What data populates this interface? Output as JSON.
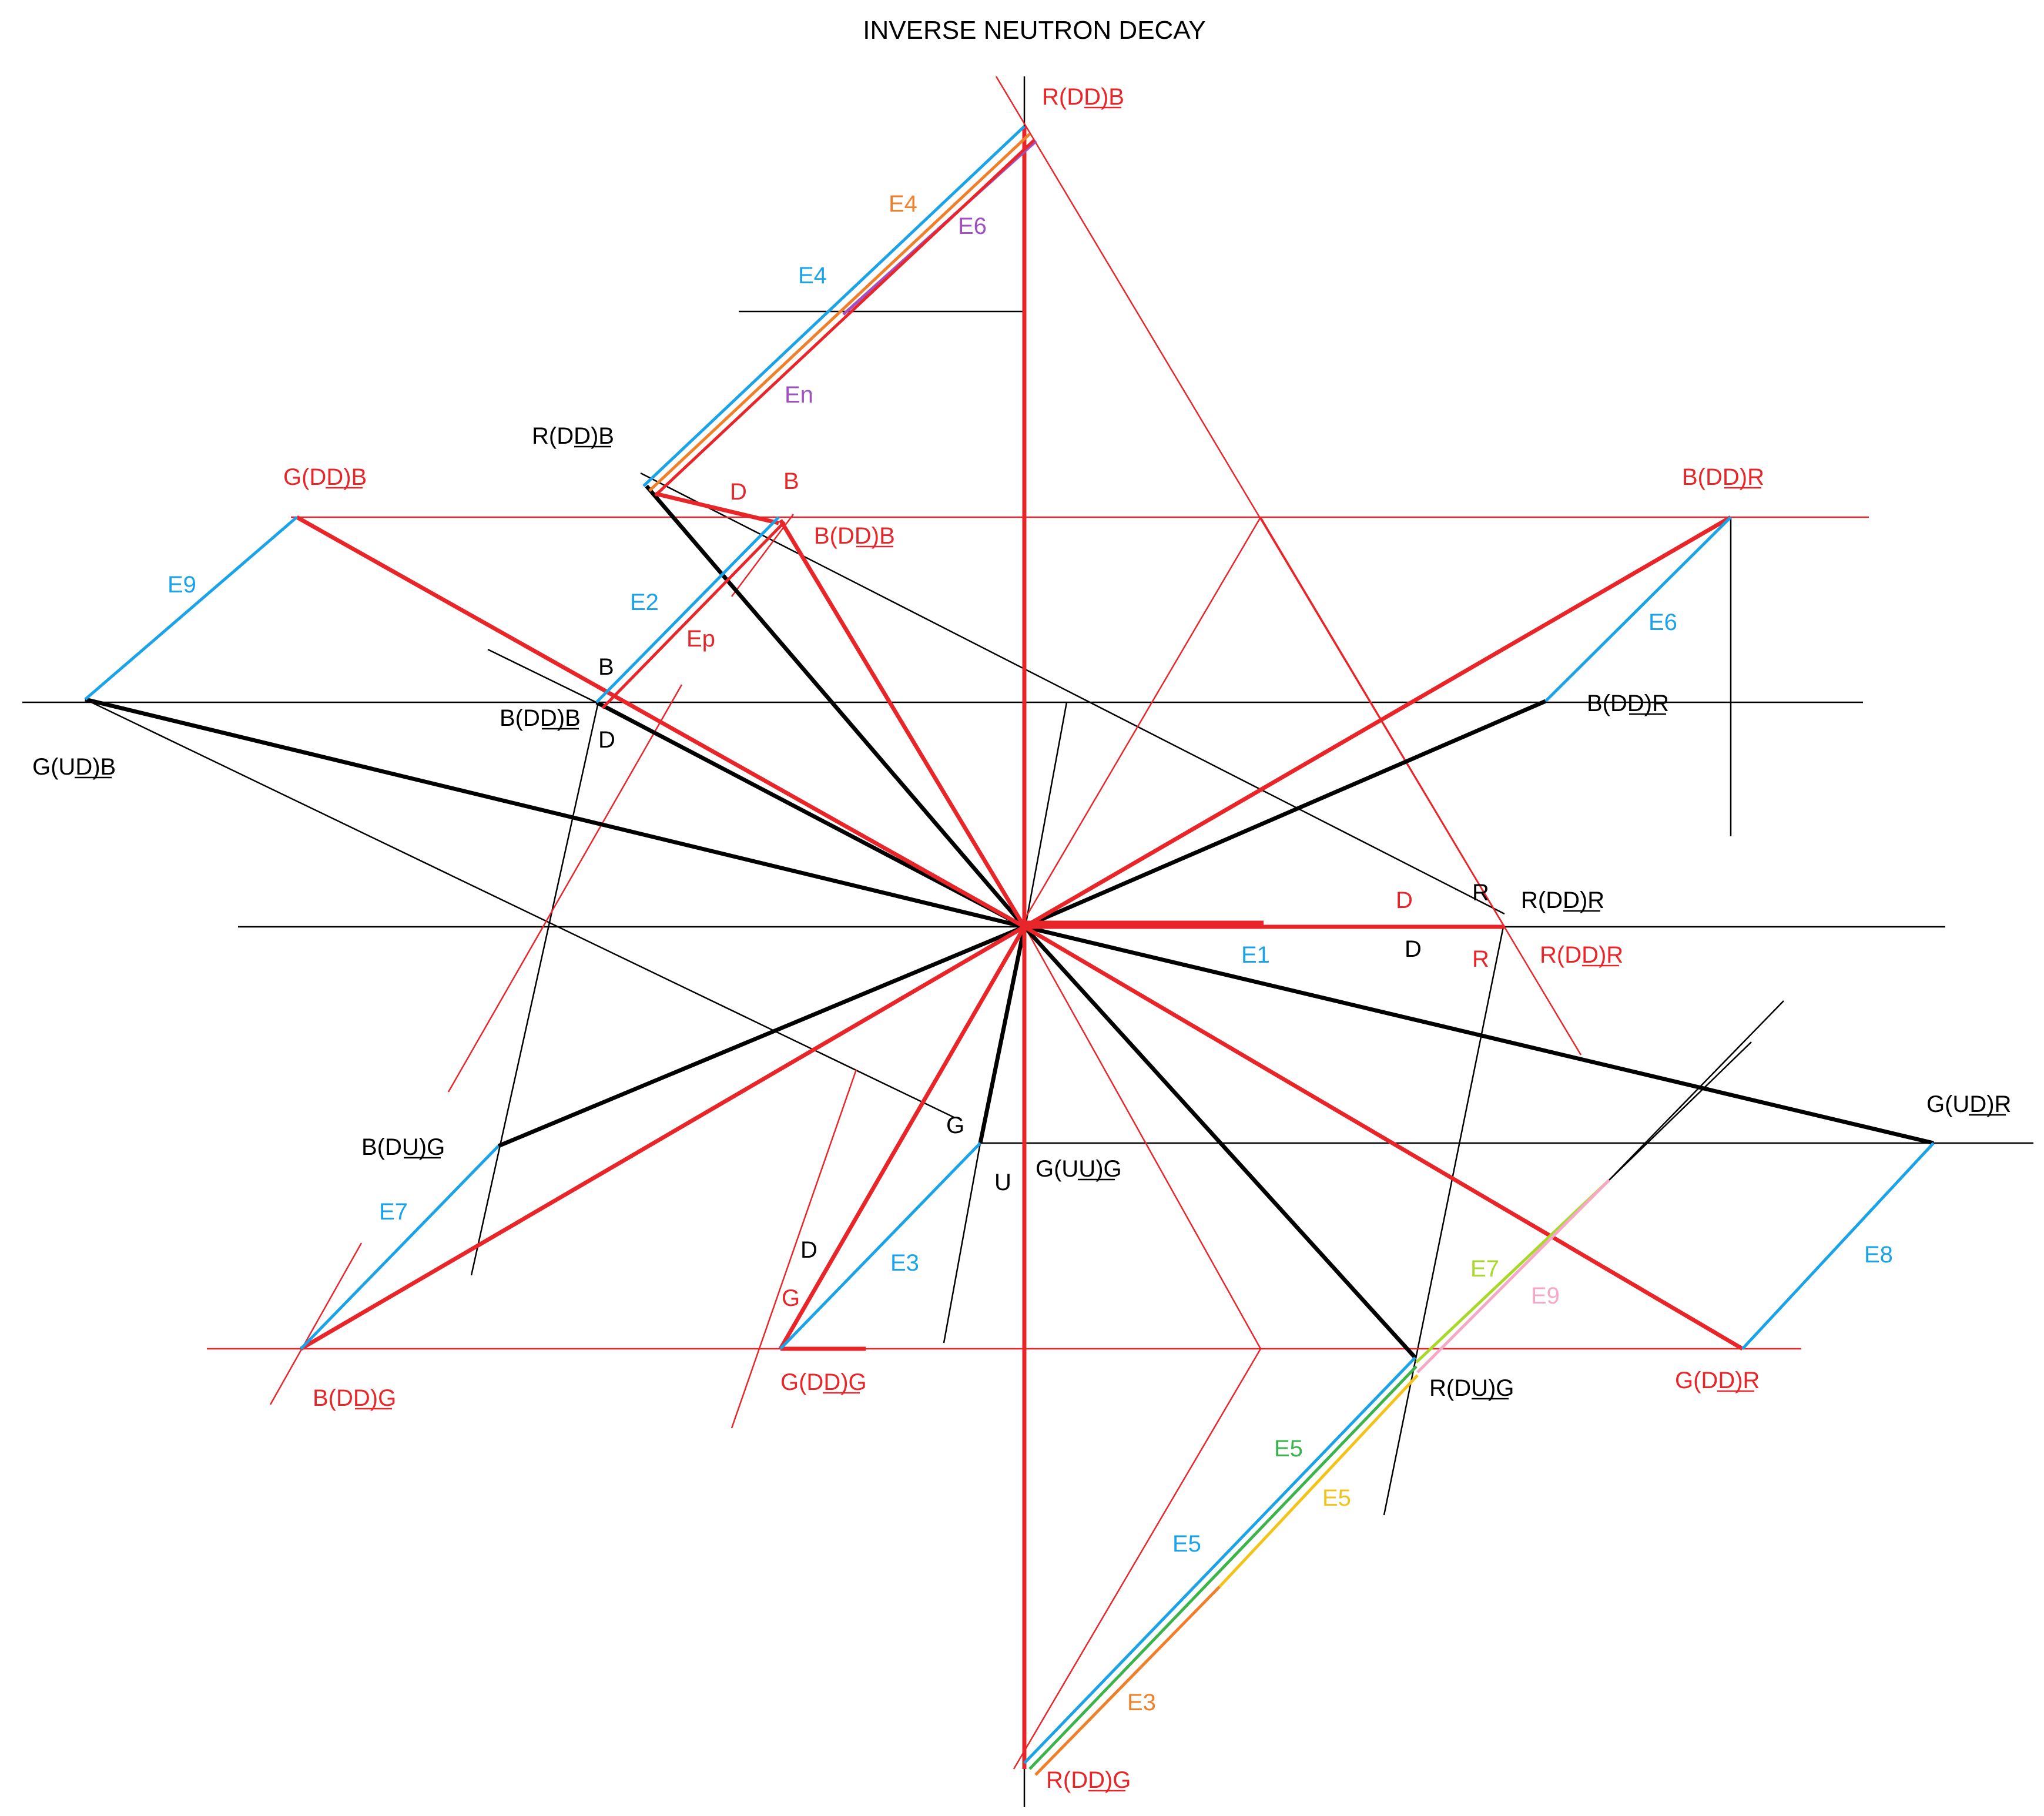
{
  "title": "INVERSE NEUTRON DECAY",
  "colors": {
    "red": "#e8262a",
    "black": "#000000",
    "blue": "#1aa3e8",
    "orange": "#f07f2a",
    "purple": "#a050c0",
    "green": "#3cb44b",
    "yellow": "#f2c41a",
    "lime": "#a8d92a",
    "pink": "#f6a8c8"
  },
  "labels": {
    "top_red": "R(DD)B",
    "top_black": "R(DD)B",
    "bdd_b_red": "B(DD)B",
    "bdd_b_black": "B(DD)B",
    "gdd_b": "G(DD)B",
    "gud_b": "G(UD)B",
    "bdd_r_red": "B(DD)R",
    "bdd_r_black": "B(DD)R",
    "rdd_r_black": "R(DD)R",
    "rdd_r_red": "R(DD)R",
    "gud_r": "G(UD)R",
    "gdd_r": "G(DD)R",
    "rdu_g": "R(DU)G",
    "guu_g": "G(UU)G",
    "gdd_g": "G(DD)G",
    "bdu_g": "B(DU)G",
    "bdd_g": "B(DD)G",
    "rdd_g": "R(DD)G"
  },
  "edge_labels": {
    "e4_orange": "E4",
    "e6_purple": "E6",
    "e4_blue": "E4",
    "en": "En",
    "e9": "E9",
    "e2": "E2",
    "ep": "Ep",
    "e6": "E6",
    "e1": "E1",
    "e7": "E7",
    "e3_blue": "E3",
    "e8": "E8",
    "e7_lime": "E7",
    "e9_pink": "E9",
    "e5_green": "E5",
    "e5_yellow": "E5",
    "e5_blue": "E5",
    "e3_orange": "E3"
  },
  "small_letters": {
    "d_top": "D",
    "b_top": "B",
    "b_left": "B",
    "d_left": "D",
    "d_right_red": "D",
    "r_right_black": "R",
    "d_right_black": "D",
    "r_right_red": "R",
    "g_bottom": "G",
    "u_bottom": "U",
    "d_bottom": "D",
    "g_bottom_red": "G"
  }
}
